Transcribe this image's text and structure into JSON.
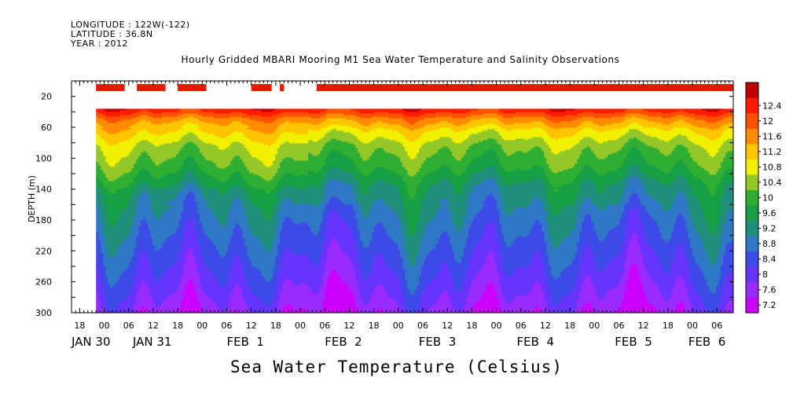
{
  "header": {
    "longitude": "LONGITUDE : 122W(-122)",
    "latitude": "LATITUDE : 36.8N",
    "year": "YEAR : 2012"
  },
  "title": "Hourly Gridded MBARI Mooring M1 Sea Water Temperature and Salinity Observations",
  "variable_label": "Sea Water Temperature (Celsius)",
  "chart_data": {
    "type": "heatmap",
    "title": "Hourly Gridded MBARI Mooring M1 Sea Water Temperature and Salinity Observations",
    "xlabel": "",
    "ylabel": "DEPTH (m)",
    "ylim": [
      300,
      0
    ],
    "y_ticks": [
      20,
      60,
      100,
      140,
      180,
      220,
      260,
      300
    ],
    "x_range_hours": [
      -8,
      154
    ],
    "x_hour_ticks": [
      {
        "hour": -6,
        "label": "18"
      },
      {
        "hour": 0,
        "label": "00"
      },
      {
        "hour": 6,
        "label": "06"
      },
      {
        "hour": 12,
        "label": "12"
      },
      {
        "hour": 18,
        "label": "18"
      },
      {
        "hour": 24,
        "label": "00"
      },
      {
        "hour": 30,
        "label": "06"
      },
      {
        "hour": 36,
        "label": "12"
      },
      {
        "hour": 42,
        "label": "18"
      },
      {
        "hour": 48,
        "label": "00"
      },
      {
        "hour": 54,
        "label": "06"
      },
      {
        "hour": 60,
        "label": "12"
      },
      {
        "hour": 66,
        "label": "18"
      },
      {
        "hour": 72,
        "label": "00"
      },
      {
        "hour": 78,
        "label": "06"
      },
      {
        "hour": 84,
        "label": "12"
      },
      {
        "hour": 90,
        "label": "18"
      },
      {
        "hour": 96,
        "label": "00"
      },
      {
        "hour": 102,
        "label": "06"
      },
      {
        "hour": 108,
        "label": "12"
      },
      {
        "hour": 114,
        "label": "18"
      },
      {
        "hour": 120,
        "label": "00"
      },
      {
        "hour": 126,
        "label": "06"
      },
      {
        "hour": 132,
        "label": "12"
      },
      {
        "hour": 138,
        "label": "18"
      },
      {
        "hour": 144,
        "label": "00"
      },
      {
        "hour": 150,
        "label": "06"
      }
    ],
    "x_day_labels": [
      {
        "hour": -8,
        "label": "JAN 30"
      },
      {
        "hour": 7,
        "label": "JAN 31"
      },
      {
        "hour": 30,
        "label": "FEB  1"
      },
      {
        "hour": 54,
        "label": "FEB  2"
      },
      {
        "hour": 77,
        "label": "FEB  3"
      },
      {
        "hour": 101,
        "label": "FEB  4"
      },
      {
        "hour": 125,
        "label": "FEB  5"
      },
      {
        "hour": 143,
        "label": "FEB  6"
      }
    ],
    "colorbar": {
      "levels": [
        7.2,
        7.6,
        8,
        8.4,
        8.8,
        9.2,
        9.6,
        10,
        10.4,
        10.8,
        11.2,
        11.6,
        12,
        12.4
      ],
      "colors": [
        "#cc00ff",
        "#9a2bff",
        "#6633ff",
        "#3c4ae6",
        "#2f78c6",
        "#1f8f7a",
        "#17a043",
        "#2fae32",
        "#93c828",
        "#f0f000",
        "#ffc400",
        "#ff8c00",
        "#ff5000",
        "#ff1a00",
        "#c00000"
      ]
    },
    "data_start_hour": -2,
    "data_top_depth": 36,
    "surface_sensor": {
      "depth": 3,
      "segments_hours": [
        [
          -2,
          5
        ],
        [
          8,
          15
        ],
        [
          18,
          25
        ],
        [
          36,
          41
        ],
        [
          43,
          44
        ],
        [
          52,
          154
        ]
      ]
    },
    "depth_profile_mean": [
      {
        "depth": 38,
        "temp": 12.2
      },
      {
        "depth": 50,
        "temp": 11.4
      },
      {
        "depth": 65,
        "temp": 10.8
      },
      {
        "depth": 85,
        "temp": 10.2
      },
      {
        "depth": 110,
        "temp": 9.8
      },
      {
        "depth": 140,
        "temp": 9.1
      },
      {
        "depth": 170,
        "temp": 8.7
      },
      {
        "depth": 200,
        "temp": 8.4
      },
      {
        "depth": 230,
        "temp": 8.1
      },
      {
        "depth": 260,
        "temp": 7.8
      },
      {
        "depth": 285,
        "temp": 7.5
      },
      {
        "depth": 300,
        "temp": 7.3
      }
    ]
  }
}
